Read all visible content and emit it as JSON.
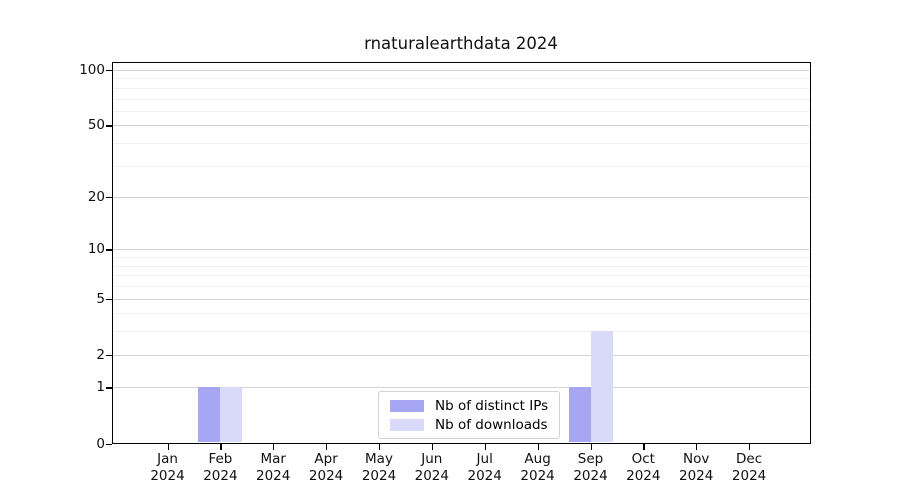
{
  "chart_data": {
    "type": "bar",
    "title": "rnaturalearthdata 2024",
    "x_categories": [
      "Jan",
      "Feb",
      "Mar",
      "Apr",
      "May",
      "Jun",
      "Jul",
      "Aug",
      "Sep",
      "Oct",
      "Nov",
      "Dec"
    ],
    "x_year": "2024",
    "series": [
      {
        "name": "Nb of distinct IPs",
        "color": "#a6a6f2",
        "values": [
          0,
          1,
          0,
          0,
          0,
          0,
          0,
          0,
          1,
          0,
          0,
          0
        ]
      },
      {
        "name": "Nb of downloads",
        "color": "#d9d9f9",
        "values": [
          0,
          1,
          0,
          0,
          0,
          0,
          0,
          0,
          3,
          0,
          0,
          0
        ]
      }
    ],
    "y_axis": {
      "scale": "log10(1+y)",
      "ylim": [
        0,
        100
      ],
      "ticks": [
        0,
        1,
        2,
        5,
        10,
        20,
        50,
        100
      ],
      "tick_labels": [
        "0",
        "1",
        "2",
        "5",
        "10",
        "20",
        "50",
        "100"
      ],
      "minor_gridlines": [
        3,
        4,
        6,
        7,
        8,
        9,
        30,
        40,
        60,
        70,
        80,
        90
      ]
    },
    "legend": {
      "position": "bottom-center"
    },
    "colors": {
      "grid_major": "#d4d4d4",
      "grid_minor": "#f0f0f0",
      "spine": "#000000",
      "text": "#111111",
      "background": "#ffffff"
    }
  }
}
